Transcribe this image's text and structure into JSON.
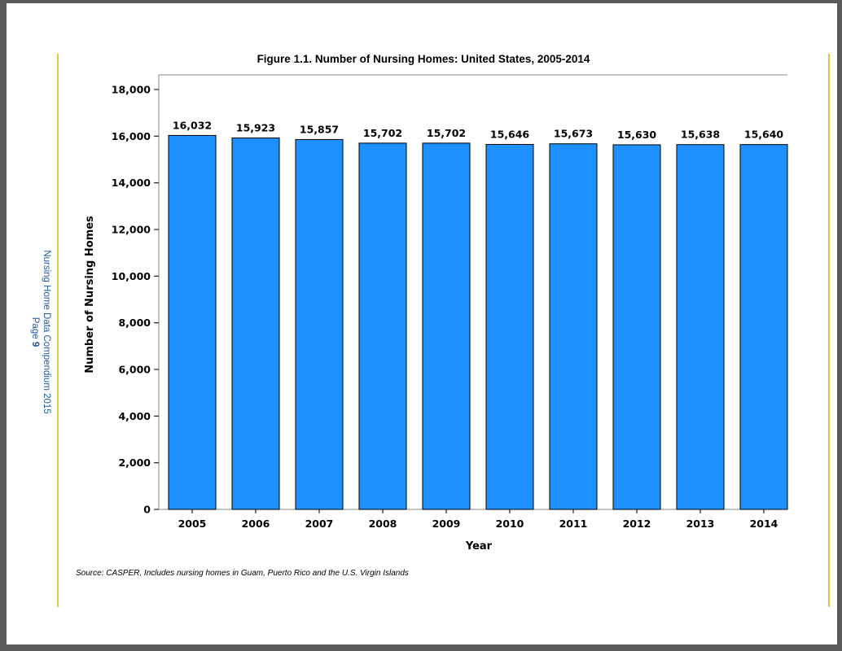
{
  "sidebar": {
    "line1": "Nursing Home Data Compendium 2015",
    "page_label": "Page",
    "page_number": "9"
  },
  "colors": {
    "bar": "#1e90ff",
    "rule": "#e8c63a",
    "side_text": "#1f5aa6"
  },
  "source": "Source: CASPER, Includes nursing homes in Guam, Puerto Rico and the U.S. Virgin Islands",
  "chart_data": {
    "type": "bar",
    "title": "Figure 1.1.  Number of Nursing Homes: United States, 2005-2014",
    "xlabel": "Year",
    "ylabel": "Number of Nursing Homes",
    "categories": [
      "2005",
      "2006",
      "2007",
      "2008",
      "2009",
      "2010",
      "2011",
      "2012",
      "2013",
      "2014"
    ],
    "values": [
      16032,
      15923,
      15857,
      15702,
      15702,
      15646,
      15673,
      15630,
      15638,
      15640
    ],
    "data_labels": [
      "16,032",
      "15,923",
      "15,857",
      "15,702",
      "15,702",
      "15,646",
      "15,673",
      "15,630",
      "15,638",
      "15,640"
    ],
    "ylim": [
      0,
      18000
    ],
    "yticks": [
      0,
      2000,
      4000,
      6000,
      8000,
      10000,
      12000,
      14000,
      16000,
      18000
    ],
    "ytick_labels": [
      "0",
      "2,000",
      "4,000",
      "6,000",
      "8,000",
      "10,000",
      "12,000",
      "14,000",
      "16,000",
      "18,000"
    ],
    "grid": false,
    "legend": "none"
  }
}
